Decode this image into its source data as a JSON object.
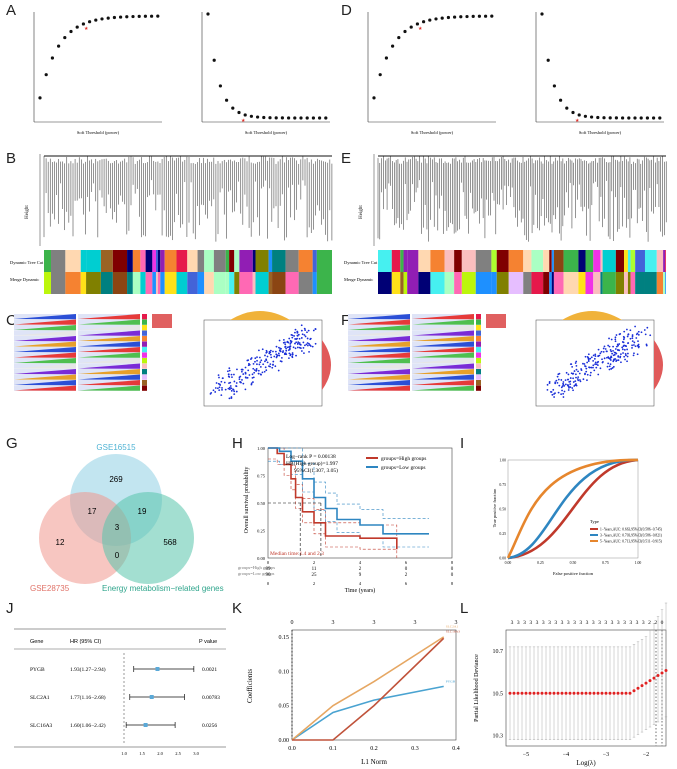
{
  "panel_letters": {
    "A": "A",
    "B": "B",
    "C": "C",
    "D": "D",
    "E": "E",
    "F": "F",
    "G": "G",
    "H": "H",
    "I": "I",
    "J": "J",
    "K": "K",
    "L": "L"
  },
  "soft_threshold_xlabel": "Soft Threshold (power)",
  "height_label": "Height",
  "dynamic_tree_cut": "Dynamic Tree Cut",
  "merge_dynamic": "Merge Dynamic",
  "venn": {
    "sets": [
      {
        "name": "GSE16515",
        "color": "#7ccbe0"
      },
      {
        "name": "GSE28735",
        "color": "#ee8a80"
      },
      {
        "name": "Energy metabolism−related genes",
        "color": "#3fb8a0"
      }
    ],
    "regions": {
      "a_only": "269",
      "b_only": "12",
      "c_only": "568",
      "ab": "17",
      "ac": "19",
      "bc": "0",
      "abc": "3"
    }
  },
  "km": {
    "logrank": "Log−rank P = 0.00138",
    "hr": "HR(High group)=1.997",
    "ci": "95%CI(1.307, 3.05)",
    "legend_high": "groups=High groups",
    "legend_low": "groups=Low groups",
    "median": "Median time:1.4 and 2.3",
    "ylabel": "Overall survival probability",
    "xlabel": "Time (years)",
    "yticks": [
      "0.00",
      "0.25",
      "0.50",
      "0.75",
      "1.00"
    ],
    "xticks": [
      "0",
      "2",
      "4",
      "6",
      "8"
    ],
    "risk_label_high": "groups=High groups",
    "risk_label_low": "groups=Low groups",
    "risk_high": [
      "89",
      "11",
      "2",
      "0",
      "0"
    ],
    "risk_low": [
      "90",
      "25",
      "9",
      "2",
      "0"
    ]
  },
  "roc": {
    "ylabel": "True positive fraction",
    "xlabel": "False positive fraction",
    "type_label": "Type",
    "legend": [
      {
        "label": "1−Years,AUC: 0.663,95%CI(0.586−0.745)",
        "color": "#c0392b"
      },
      {
        "label": "3−Years,AUC: 0.703,95%CI(0.586−0.821)",
        "color": "#2e86c1"
      },
      {
        "label": "5−Years,AUC: 0.713,95%CI(0.511−0.915)",
        "color": "#e6862d"
      }
    ],
    "xticks": [
      "0.00",
      "0.25",
      "0.50",
      "0.75",
      "1.00"
    ],
    "yticks": [
      "0.00",
      "0.25",
      "0.50",
      "0.75",
      "1.00"
    ]
  },
  "forest": {
    "header_gene": "Gene",
    "header_hr": "HR (95% CI)",
    "header_p": "P value",
    "rows": [
      {
        "gene": "PYGB",
        "hr": "1.93(1.27−2.94)",
        "p": "0.0021",
        "est": 1.93,
        "lo": 1.27,
        "hi": 2.94
      },
      {
        "gene": "SLC2A1",
        "hr": "1.77(1.16−2.68)",
        "p": "0.00783",
        "est": 1.77,
        "lo": 1.16,
        "hi": 2.68
      },
      {
        "gene": "SLC16A3",
        "hr": "1.60(1.06−2.42)",
        "p": "0.0256",
        "est": 1.6,
        "lo": 1.06,
        "hi": 2.42
      }
    ],
    "xticks": [
      "1.0",
      "1.5",
      "2.0",
      "2.5",
      "3.0"
    ]
  },
  "lasso_coef": {
    "ylabel": "Coefficients",
    "xlabel": "L1 Norm",
    "top_ticks": [
      "0",
      "3",
      "3",
      "3",
      "3"
    ],
    "yticks": [
      "0.00",
      "0.05",
      "0.10",
      "0.15"
    ],
    "xticks": [
      "0.0",
      "0.1",
      "0.2",
      "0.3",
      "0.4"
    ],
    "curve_labels": [
      "PYGB",
      "SLC2A1",
      "SLC16A3"
    ]
  },
  "lasso_cv": {
    "ylabel": "Partial Likelihood Deviance",
    "xlabel": "Log(λ)",
    "top_ticks": [
      "3",
      "3",
      "3",
      "3",
      "3",
      "3",
      "3",
      "3",
      "3",
      "3",
      "3",
      "3",
      "3",
      "3",
      "3",
      "3",
      "3",
      "3",
      "3",
      "3",
      "3",
      "3",
      "2",
      "2",
      "0"
    ],
    "yticks": [
      "10.3",
      "10.5",
      "10.7"
    ],
    "xticks": [
      "−5",
      "−4",
      "−3",
      "−2"
    ]
  }
}
